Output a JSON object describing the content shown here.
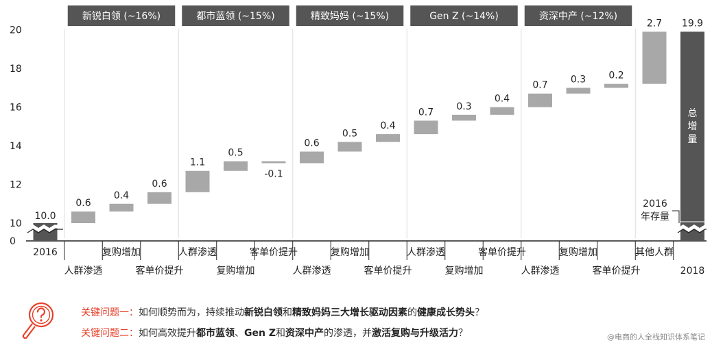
{
  "chart_data": {
    "type": "waterfall",
    "ylim": [
      0,
      20
    ],
    "yticks": [
      0,
      10,
      12,
      14,
      16,
      18,
      20
    ],
    "axis_break": true,
    "start": {
      "label": "2016",
      "value": 10.0,
      "value_label": "10.0"
    },
    "groups": [
      {
        "name": "新锐白领 (~16%)",
        "steps": [
          {
            "category": "人群渗透",
            "value": 0.6,
            "value_label": "0.6"
          },
          {
            "category": "复购增加",
            "value": 0.4,
            "value_label": "0.4"
          },
          {
            "category": "客单价提升",
            "value": 0.6,
            "value_label": "0.6"
          }
        ]
      },
      {
        "name": "都市蓝领 (~15%)",
        "steps": [
          {
            "category": "人群渗透",
            "value": 1.1,
            "value_label": "1.1"
          },
          {
            "category": "复购增加",
            "value": 0.5,
            "value_label": "0.5"
          },
          {
            "category": "客单价提升",
            "value": -0.1,
            "value_label": "-0.1"
          }
        ]
      },
      {
        "name": "精致妈妈 (~15%)",
        "steps": [
          {
            "category": "人群渗透",
            "value": 0.6,
            "value_label": "0.6"
          },
          {
            "category": "复购增加",
            "value": 0.5,
            "value_label": "0.5"
          },
          {
            "category": "客单价提升",
            "value": 0.4,
            "value_label": "0.4"
          }
        ]
      },
      {
        "name": "Gen Z (~14%)",
        "steps": [
          {
            "category": "人群渗透",
            "value": 0.7,
            "value_label": "0.7"
          },
          {
            "category": "复购增加",
            "value": 0.3,
            "value_label": "0.3"
          },
          {
            "category": "客单价提升",
            "value": 0.4,
            "value_label": "0.4"
          }
        ]
      },
      {
        "name": "资深中产 (~12%)",
        "steps": [
          {
            "category": "人群渗透",
            "value": 0.7,
            "value_label": "0.7"
          },
          {
            "category": "复购增加",
            "value": 0.3,
            "value_label": "0.3"
          },
          {
            "category": "客单价提升",
            "value": 0.2,
            "value_label": "0.2"
          }
        ]
      }
    ],
    "others": {
      "label": "其他人群",
      "value": 2.7,
      "value_label": "2.7"
    },
    "end": {
      "label": "2018",
      "value": 19.9,
      "value_label": "19.9",
      "inner_text": "总增量",
      "base_note": "2016年存量"
    },
    "colors": {
      "step": "#a8a8a8",
      "total": "#555555",
      "header": "#555555",
      "accent": "#e8412a"
    }
  },
  "questions": [
    {
      "label": "关键问题一：",
      "parts": [
        {
          "text": "如何顺势而为，持续推动",
          "bold": false
        },
        {
          "text": "新锐白领",
          "bold": true
        },
        {
          "text": "和",
          "bold": false
        },
        {
          "text": "精致妈妈",
          "bold": true
        },
        {
          "text": "三大增长驱动因素",
          "bold": true
        },
        {
          "text": "的",
          "bold": false
        },
        {
          "text": "健康成长势头",
          "bold": true
        },
        {
          "text": "？",
          "bold": false
        }
      ]
    },
    {
      "label": "关键问题二：",
      "parts": [
        {
          "text": "如何高效提升",
          "bold": false
        },
        {
          "text": "都市蓝领",
          "bold": true
        },
        {
          "text": "、",
          "bold": false
        },
        {
          "text": "Gen Z",
          "bold": true
        },
        {
          "text": "和",
          "bold": false
        },
        {
          "text": "资深中产",
          "bold": true
        },
        {
          "text": "的渗透，并",
          "bold": false
        },
        {
          "text": "激活复购与升级活力",
          "bold": true
        },
        {
          "text": "？",
          "bold": false
        }
      ]
    }
  ],
  "watermark": "@电商的人全栈知识体系笔记",
  "icon": "magnifier-question-icon"
}
